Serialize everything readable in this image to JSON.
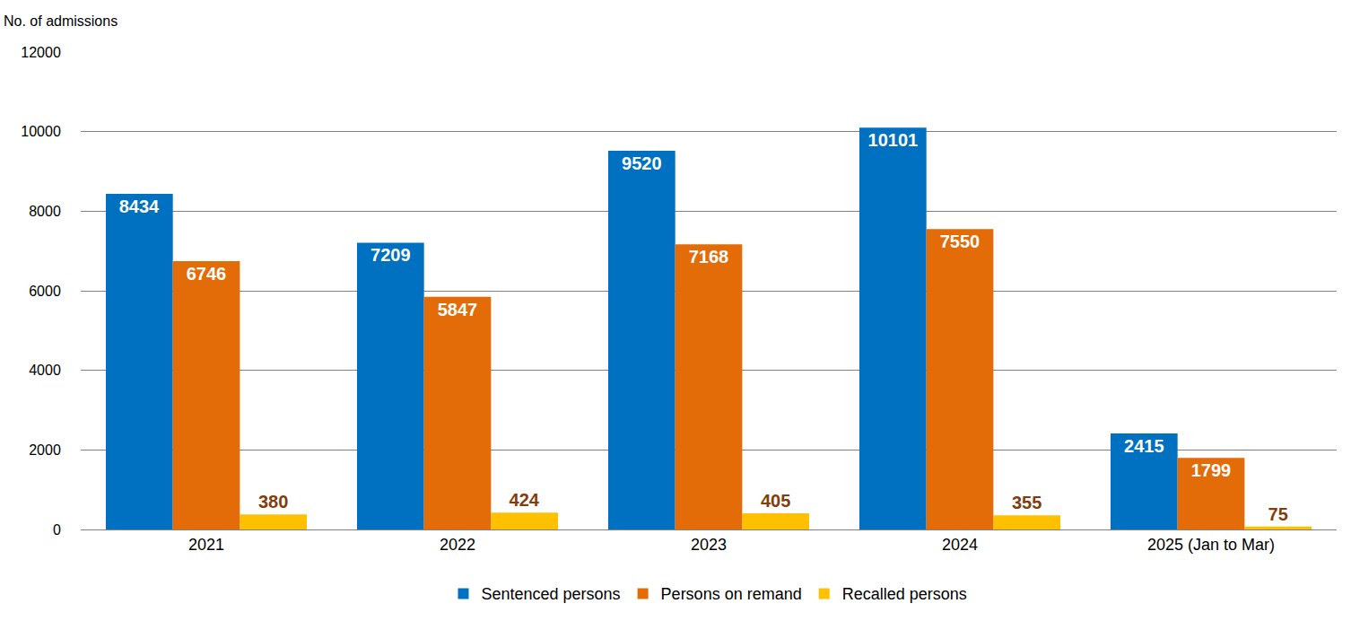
{
  "chart_data": {
    "type": "bar",
    "y_label": "No. of admissions",
    "categories": [
      "2021",
      "2022",
      "2023",
      "2024",
      "2025 (Jan to Mar)"
    ],
    "series": [
      {
        "name": "Sentenced persons",
        "color": "#0070c0",
        "values": [
          8434,
          7209,
          9520,
          10101,
          2415
        ]
      },
      {
        "name": "Persons on remand",
        "color": "#e36c09",
        "values": [
          6746,
          5847,
          7168,
          7550,
          1799
        ]
      },
      {
        "name": "Recalled persons",
        "color": "#ffc000",
        "values": [
          380,
          424,
          405,
          355,
          75
        ]
      }
    ],
    "ylim": [
      0,
      12000
    ],
    "yticks": [
      0,
      2000,
      4000,
      6000,
      8000,
      10000,
      12000
    ],
    "grid": true,
    "legend": "bottom",
    "data_labels": true
  }
}
